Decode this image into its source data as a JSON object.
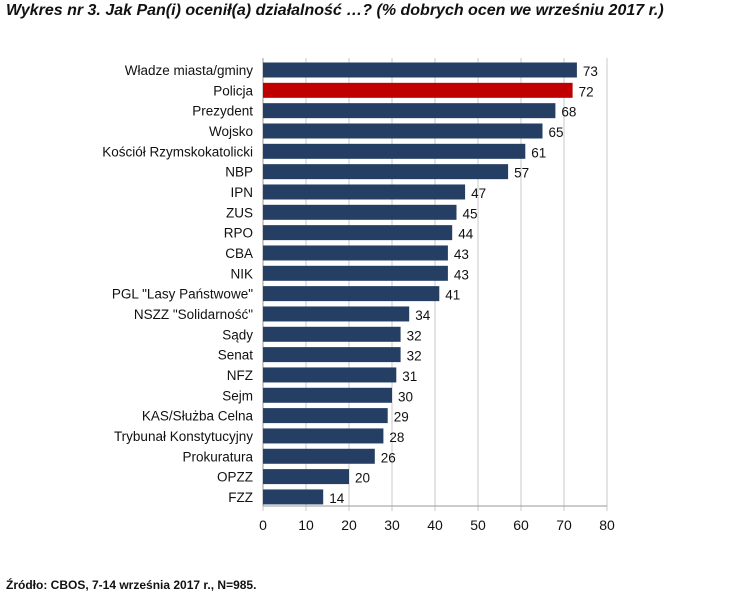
{
  "chart_data": {
    "type": "bar",
    "orientation": "horizontal",
    "title": "Wykres nr 3. Jak Pan(i) ocenił(a) działalność …? (% dobrych ocen we wrześniu 2017 r.)",
    "source": "Źródło: CBOS, 7-14 września 2017 r., N=985.",
    "categories": [
      "Władze miasta/gminy",
      "Policja",
      "Prezydent",
      "Wojsko",
      "Kościół Rzymskokatolicki",
      "NBP",
      "IPN",
      "ZUS",
      "RPO",
      "CBA",
      "NIK",
      "PGL \"Lasy Państwowe\"",
      "NSZZ \"Solidarność\"",
      "Sądy",
      "Senat",
      "NFZ",
      "Sejm",
      "KAS/Służba Celna",
      "Trybunał Konstytucyjny",
      "Prokuratura",
      "OPZZ",
      "FZZ"
    ],
    "values": [
      73,
      72,
      68,
      65,
      61,
      57,
      47,
      45,
      44,
      43,
      43,
      41,
      34,
      32,
      32,
      31,
      30,
      29,
      28,
      26,
      20,
      14
    ],
    "xlim": [
      0,
      80
    ],
    "xticks": [
      0,
      10,
      20,
      30,
      40,
      50,
      60,
      70,
      80
    ],
    "grid": true,
    "colors": {
      "default": "#243f63",
      "highlight": "#c00000"
    },
    "highlight_category": "Policja"
  }
}
